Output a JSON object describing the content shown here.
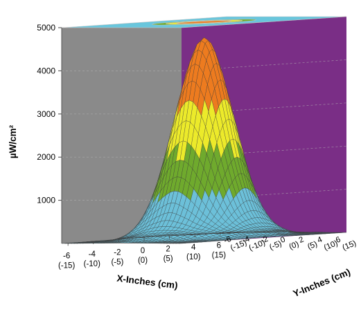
{
  "chart_data": {
    "type": "surface3d",
    "ylabel": "µW/cm²",
    "xlabel": "X-Inches (cm)",
    "y2label": "Y-Inches (cm)",
    "z_ticks": [
      "1000",
      "2000",
      "3000",
      "4000",
      "5000"
    ],
    "z_range": [
      0,
      5000
    ],
    "x_ticks": [
      {
        "in": "-6",
        "cm": "(-15)"
      },
      {
        "in": "-4",
        "cm": "(-10)"
      },
      {
        "in": "-2",
        "cm": "(-5)"
      },
      {
        "in": "0",
        "cm": "(0)"
      },
      {
        "in": "2",
        "cm": "(5)"
      },
      {
        "in": "4",
        "cm": "(10)"
      },
      {
        "in": "6",
        "cm": "(15)"
      }
    ],
    "y_ticks": [
      {
        "in": "-6",
        "cm": "(-15)"
      },
      {
        "in": "-4",
        "cm": "(-10)"
      },
      {
        "in": "-2",
        "cm": "(-5)"
      },
      {
        "in": "0",
        "cm": "(0)"
      },
      {
        "in": "2",
        "cm": "(5)"
      },
      {
        "in": "4",
        "cm": "(10)"
      },
      {
        "in": "6",
        "cm": "(15)"
      }
    ],
    "peak_value": 4600,
    "center": [
      0,
      0
    ],
    "grid": true,
    "color_bands": [
      {
        "from": 0,
        "to": 1000,
        "color": "#6cc0d9"
      },
      {
        "from": 1000,
        "to": 2000,
        "color": "#6faa2d"
      },
      {
        "from": 2000,
        "to": 3000,
        "color": "#ecea2a"
      },
      {
        "from": 3000,
        "to": 5000,
        "color": "#ed7b1f"
      }
    ],
    "wall_colors": {
      "left": "#8a8a8a",
      "right": "#7a2e86",
      "top": "#69c6dc"
    }
  }
}
